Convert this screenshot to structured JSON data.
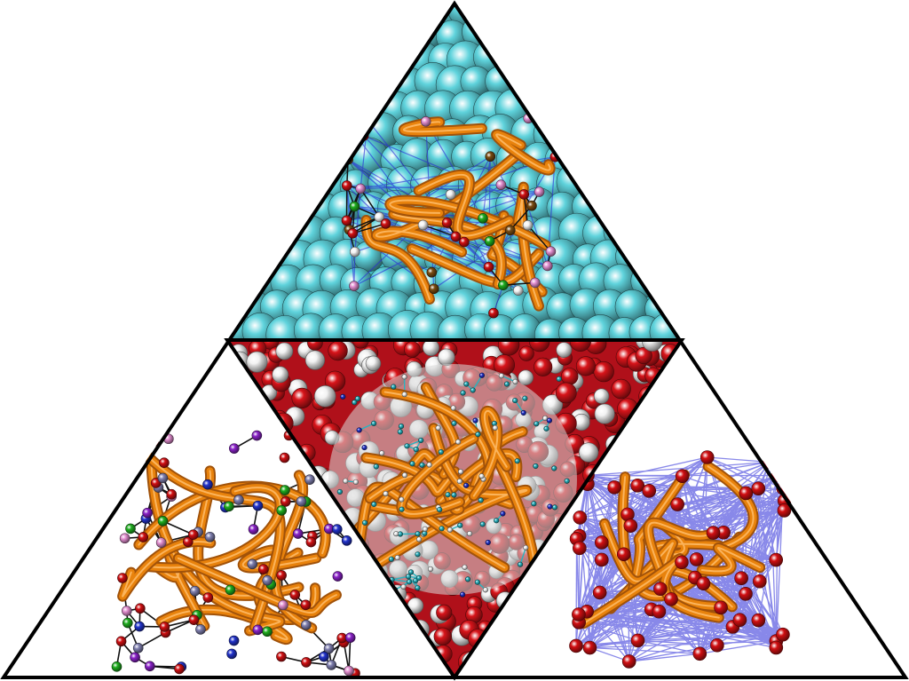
{
  "figure": {
    "panels": [
      {
        "id": "top",
        "subject": "protein-ribbon-on-atomic-lattice"
      },
      {
        "id": "left",
        "subject": "protein-ribbon-with-coarse-grained-beads"
      },
      {
        "id": "center",
        "subject": "protein-ribbon-in-explicit-water"
      },
      {
        "id": "right",
        "subject": "protein-ribbon-elastic-network"
      }
    ],
    "colors": {
      "outline": "#000000",
      "ribbon": "#e8820c",
      "ribbon_dark": "#a0520a",
      "lattice_sphere": "#5fd3dc",
      "water_oxygen": "#d8141a",
      "water_hydrogen": "#f2f2f2",
      "bead_red": "#d10f12",
      "bead_green": "#1fae1f",
      "bead_pink": "#e38fd0",
      "bead_white": "#f4f4f4",
      "bead_brown": "#7a4d12",
      "bead_purple": "#8a22c8",
      "bead_slate": "#8080b0",
      "bead_blue": "#2233cc",
      "network_line": "#2828d8",
      "stick_cyan": "#29b3c0"
    }
  }
}
